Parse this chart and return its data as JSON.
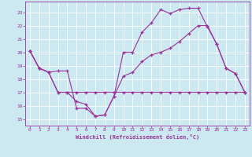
{
  "xlabel": "Windchill (Refroidissement éolien,°C)",
  "bg_color": "#cce8f0",
  "grid_color": "#ffffff",
  "line_color": "#993399",
  "x_hours": [
    0,
    1,
    2,
    3,
    4,
    5,
    6,
    7,
    8,
    9,
    10,
    11,
    12,
    13,
    14,
    15,
    16,
    17,
    18,
    19,
    20,
    21,
    22,
    23
  ],
  "series1": [
    20.1,
    18.8,
    18.5,
    18.6,
    18.6,
    15.8,
    15.8,
    15.2,
    15.3,
    16.7,
    20.0,
    20.0,
    21.5,
    22.2,
    23.2,
    22.9,
    23.2,
    23.3,
    23.3,
    21.9,
    20.6,
    18.8,
    18.4,
    17.0
  ],
  "series2": [
    20.1,
    18.8,
    18.5,
    17.0,
    17.0,
    16.3,
    16.1,
    15.2,
    15.3,
    16.7,
    18.2,
    18.5,
    19.3,
    19.8,
    20.0,
    20.3,
    20.8,
    21.4,
    22.0,
    22.0,
    20.6,
    18.8,
    18.4,
    17.0
  ],
  "series3": [
    20.1,
    18.8,
    18.5,
    17.0,
    17.0,
    17.0,
    17.0,
    17.0,
    17.0,
    17.0,
    17.0,
    17.0,
    17.0,
    17.0,
    17.0,
    17.0,
    17.0,
    17.0,
    17.0,
    17.0,
    17.0,
    17.0,
    17.0,
    17.0
  ],
  "ylim": [
    14.5,
    23.8
  ],
  "yticks": [
    15,
    16,
    17,
    18,
    19,
    20,
    21,
    22,
    23
  ],
  "xticks": [
    0,
    1,
    2,
    3,
    4,
    5,
    6,
    7,
    8,
    9,
    10,
    11,
    12,
    13,
    14,
    15,
    16,
    17,
    18,
    19,
    20,
    21,
    22,
    23
  ]
}
